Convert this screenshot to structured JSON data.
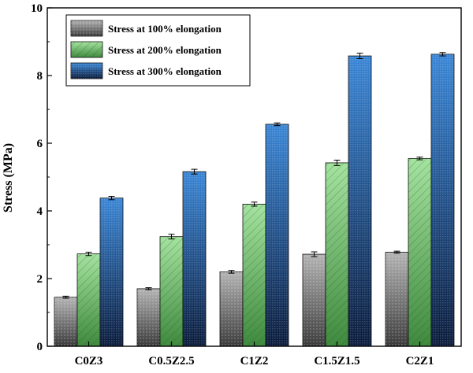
{
  "chart_data": {
    "type": "bar",
    "title": "",
    "xlabel": "",
    "ylabel": "Stress (MPa)",
    "ylim": [
      0,
      10
    ],
    "yticks": [
      "0",
      "2",
      "4",
      "6",
      "8",
      "10"
    ],
    "categories": [
      "C0Z3",
      "C0.5Z2.5",
      "C1Z2",
      "C1.5Z1.5",
      "C2Z1"
    ],
    "series": [
      {
        "name": "Stress at 100% elongation",
        "values": [
          1.45,
          1.7,
          2.2,
          2.72,
          2.78
        ],
        "errors": [
          0.03,
          0.03,
          0.04,
          0.07,
          0.03
        ],
        "color": "#9a9a9a"
      },
      {
        "name": "Stress at 200% elongation",
        "values": [
          2.73,
          3.24,
          4.2,
          5.42,
          5.55
        ],
        "errors": [
          0.05,
          0.07,
          0.06,
          0.08,
          0.04
        ],
        "color": "#8fd08a"
      },
      {
        "name": "Stress at 300% elongation",
        "values": [
          4.38,
          5.16,
          6.56,
          8.58,
          8.63
        ],
        "errors": [
          0.05,
          0.07,
          0.04,
          0.08,
          0.05
        ],
        "color": "#2f6fc0"
      }
    ],
    "grid": false,
    "legend_position": "top-left"
  }
}
